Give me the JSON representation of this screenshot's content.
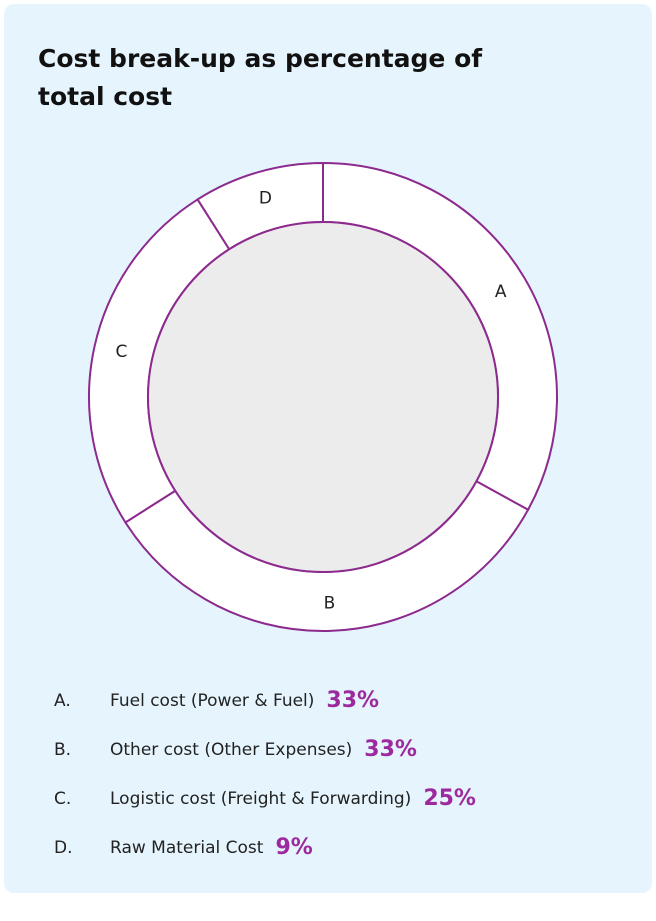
{
  "chart_data": {
    "type": "donut",
    "title": "Cost break-up as percentage of total cost",
    "labels": [
      "A",
      "B",
      "C",
      "D"
    ],
    "legend_markers": [
      "A.",
      "B.",
      "C.",
      "D."
    ],
    "categories": [
      "Fuel cost (Power & Fuel)",
      "Other cost (Other Expenses)",
      "Logistic cost (Freight & Forwarding)",
      "Raw Material Cost"
    ],
    "values": [
      33,
      33,
      25,
      9
    ],
    "value_labels": [
      "33%",
      "33%",
      "25%",
      "9%"
    ],
    "color": "#ffffff",
    "stroke": "#8c2a8e",
    "hole_color": "#ececec",
    "value_label_color": "#9c2a9e"
  }
}
